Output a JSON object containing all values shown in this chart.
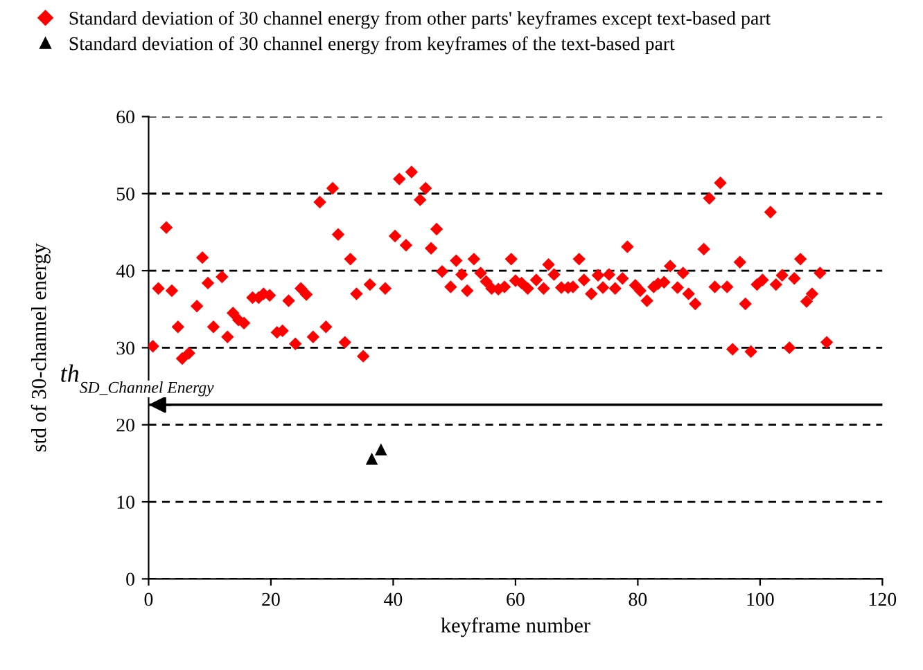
{
  "chart_data": {
    "type": "scatter",
    "xlabel": "keyframe number",
    "ylabel": "std of 30-channel energy",
    "xlim": [
      0,
      120
    ],
    "ylim": [
      0,
      60
    ],
    "xticks": [
      0,
      20,
      40,
      60,
      80,
      100,
      120
    ],
    "yticks": [
      0,
      10,
      20,
      30,
      40,
      50,
      60
    ],
    "grid": "y",
    "legend": "top left",
    "series": [
      {
        "name": "Standard deviation of 30 channel energy from other parts' keyframes except text-based part",
        "color": "#ff0000",
        "marker": "diamond",
        "x": [
          0.7,
          1.6,
          2.9,
          3.8,
          4.8,
          5.5,
          6.6,
          7.9,
          8.8,
          9.7,
          10.6,
          12,
          12.9,
          13.8,
          14.7,
          15.6,
          17,
          18,
          18.8,
          19.8,
          21,
          21.9,
          22.9,
          24,
          24.9,
          25.8,
          26.9,
          28,
          29,
          30.1,
          31,
          32.1,
          33,
          34,
          35.1,
          36.2,
          38.7,
          40.3,
          41,
          42.1,
          43,
          44.4,
          45.3,
          46.2,
          47.1,
          48,
          49.4,
          50.3,
          51.2,
          52.1,
          53.2,
          54.3,
          55.2,
          56.1,
          57.2,
          58.2,
          59.3,
          60,
          61,
          62,
          63.4,
          64.6,
          65.4,
          66.3,
          67.5,
          68.6,
          69.4,
          70.4,
          71.2,
          72.4,
          73.5,
          74.3,
          75.3,
          76.3,
          77.5,
          78.3,
          79.6,
          80.4,
          81.5,
          82.6,
          83.3,
          84.3,
          85.3,
          86.5,
          87.4,
          88.3,
          89.4,
          90.8,
          91.7,
          92.6,
          93.5,
          94.6,
          95.5,
          96.7,
          97.6,
          98.5,
          99.5,
          100.4,
          101.7,
          102.6,
          103.6,
          104.8,
          105.6,
          106.6,
          107.6,
          108.5,
          109.8,
          110.9
        ],
        "values": [
          30.2,
          37.7,
          45.6,
          37.4,
          32.7,
          28.6,
          29.3,
          35.4,
          41.7,
          38.4,
          32.7,
          39.2,
          31.4,
          34.5,
          33.6,
          33.2,
          36.5,
          36.5,
          37,
          36.8,
          32,
          32.2,
          36.1,
          30.5,
          37.7,
          36.9,
          31.4,
          48.9,
          32.7,
          50.7,
          44.7,
          30.7,
          41.5,
          37,
          28.9,
          38.2,
          37.7,
          44.5,
          51.9,
          43.3,
          52.8,
          49.2,
          50.7,
          42.9,
          45.4,
          39.9,
          37.9,
          41.3,
          39.5,
          37.4,
          41.5,
          39.7,
          38.6,
          37.7,
          37.6,
          37.9,
          41.5,
          38.7,
          38.4,
          37.7,
          38.8,
          37.7,
          40.8,
          39.5,
          37.8,
          37.8,
          37.9,
          41.5,
          38.8,
          37,
          39.4,
          37.8,
          39.5,
          37.7,
          39,
          43.1,
          38.1,
          37.4,
          36.1,
          37.9,
          38.3,
          38.5,
          40.6,
          37.8,
          39.7,
          37,
          35.7,
          42.8,
          49.4,
          37.9,
          51.4,
          37.9,
          29.8,
          41.1,
          35.7,
          29.5,
          38.2,
          38.8,
          47.6,
          38.2,
          39.4,
          30,
          39,
          41.5,
          36,
          37,
          39.7,
          30.7
        ]
      },
      {
        "name": "Standard deviation of 30 channel energy from keyframes of the text-based part",
        "color": "#000000",
        "marker": "triangle",
        "x": [
          36.5,
          38
        ],
        "values": [
          15.6,
          16.8
        ]
      }
    ],
    "ref_lines": [
      {
        "axis": "y",
        "value": 22.6,
        "label": "th$_{SD_Channel Energy}$",
        "color": "#000000",
        "line_style": "solid"
      }
    ]
  }
}
